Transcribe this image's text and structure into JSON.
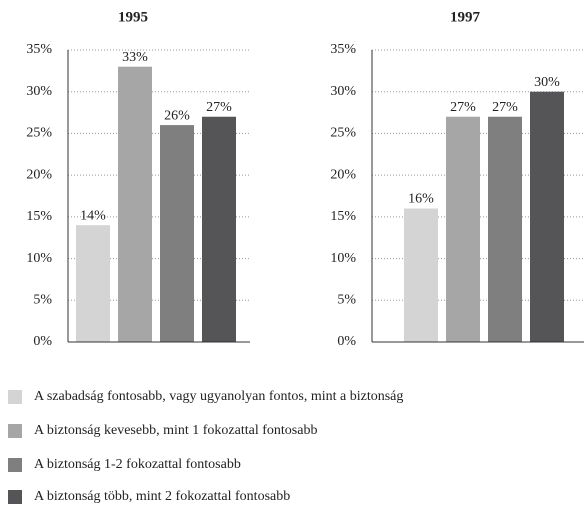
{
  "chart_data": [
    {
      "type": "bar",
      "title": "1995",
      "values": [
        14,
        33,
        26,
        27
      ],
      "value_labels": [
        "14%",
        "33%",
        "26%",
        "27%"
      ],
      "ylim": [
        0,
        35
      ],
      "yticks": [
        {
          "value": 0,
          "label": "0%"
        },
        {
          "value": 5,
          "label": "5%"
        },
        {
          "value": 10,
          "label": "10%"
        },
        {
          "value": 15,
          "label": "15%"
        },
        {
          "value": 20,
          "label": "20%"
        },
        {
          "value": 25,
          "label": "25%"
        },
        {
          "value": 30,
          "label": "30%"
        },
        {
          "value": 35,
          "label": "35%"
        }
      ],
      "grid": true
    },
    {
      "type": "bar",
      "title": "1997",
      "values": [
        16,
        27,
        27,
        30
      ],
      "value_labels": [
        "16%",
        "27%",
        "27%",
        "30%"
      ],
      "ylim": [
        0,
        35
      ],
      "yticks": [
        {
          "value": 0,
          "label": "0%"
        },
        {
          "value": 5,
          "label": "5%"
        },
        {
          "value": 10,
          "label": "10%"
        },
        {
          "value": 15,
          "label": "15%"
        },
        {
          "value": 20,
          "label": "20%"
        },
        {
          "value": 25,
          "label": "25%"
        },
        {
          "value": 30,
          "label": "30%"
        },
        {
          "value": 35,
          "label": "35%"
        }
      ],
      "grid": true
    }
  ],
  "legend": [
    {
      "name": "A szabadság fontosabb, vagy ugyanolyan fontos, mint a biztonság",
      "color": "#d4d4d4"
    },
    {
      "name": "A biztonság kevesebb, mint 1 fokozattal fontosabb",
      "color": "#a6a6a6"
    },
    {
      "name": "A biztonság 1-2 fokozattal fontosabb",
      "color": "#7f7f80"
    },
    {
      "name": "A biztonság több, mint 2 fokozattal fontosabb",
      "color": "#555557"
    }
  ]
}
